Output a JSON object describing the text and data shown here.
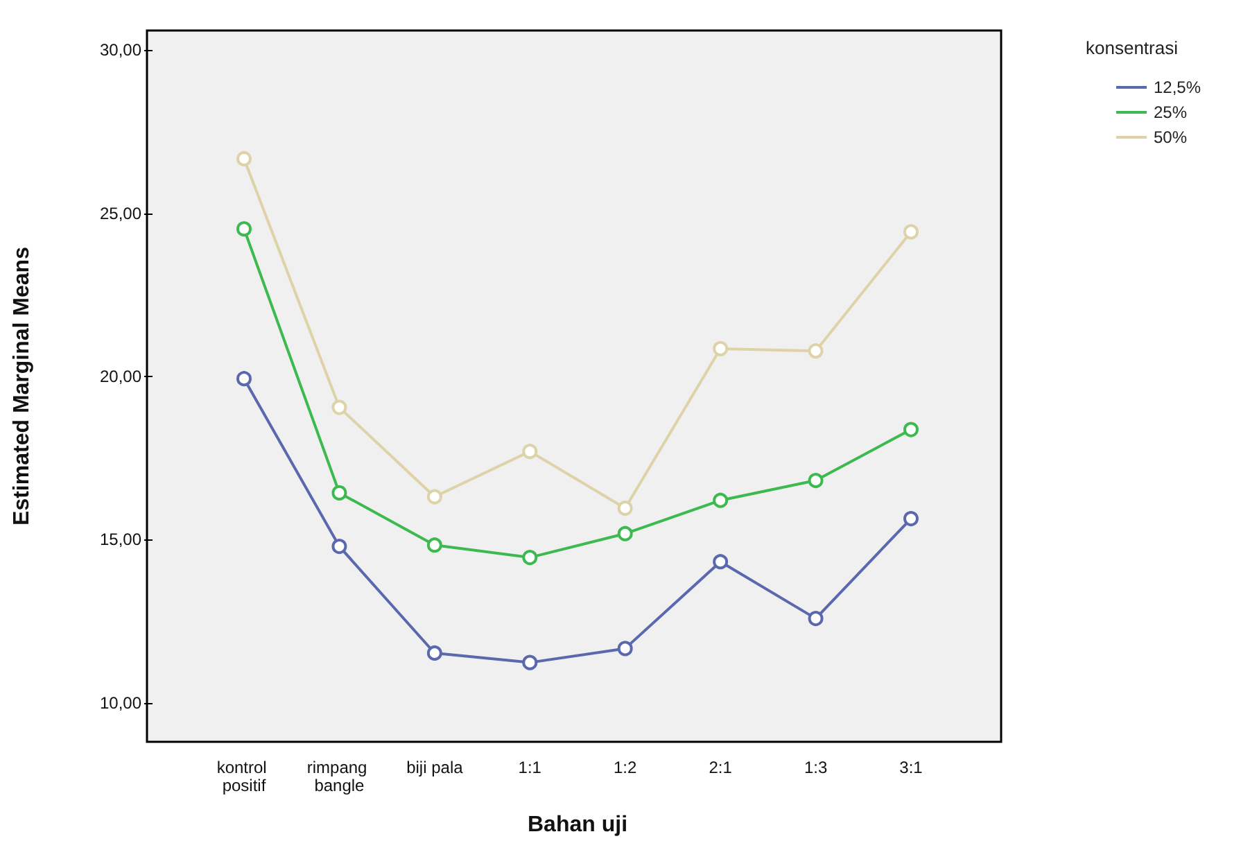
{
  "chart_data": {
    "type": "line",
    "xlabel": "Bahan uji",
    "ylabel": "Estimated Marginal Means",
    "legend_title": "konsentrasi",
    "categories": [
      "kontrol positif",
      "rimpang bangle",
      "biji pala",
      "1:1",
      "1:2",
      "2:1",
      "1:3",
      "3:1"
    ],
    "series": [
      {
        "name": "12,5%",
        "color": "#5a68ad",
        "values": [
          19.93,
          14.79,
          11.52,
          11.23,
          11.66,
          14.32,
          12.58,
          15.64
        ]
      },
      {
        "name": "25%",
        "color": "#3dba4f",
        "values": [
          24.52,
          16.43,
          14.83,
          14.45,
          15.18,
          16.2,
          16.81,
          18.37
        ]
      },
      {
        "name": "50%",
        "color": "#ddd2a8",
        "values": [
          26.67,
          19.05,
          16.31,
          17.7,
          15.96,
          20.85,
          20.78,
          24.43
        ]
      }
    ],
    "ylim": [
      8.8,
      30.6
    ],
    "yticks": [
      {
        "value": 10,
        "label": "10,00"
      },
      {
        "value": 15,
        "label": "15,00"
      },
      {
        "value": 20,
        "label": "20,00"
      },
      {
        "value": 25,
        "label": "25,00"
      },
      {
        "value": 30,
        "label": "30,00"
      }
    ],
    "grid": false,
    "legend": "top right",
    "marker": "circle",
    "line_style": "solid"
  }
}
